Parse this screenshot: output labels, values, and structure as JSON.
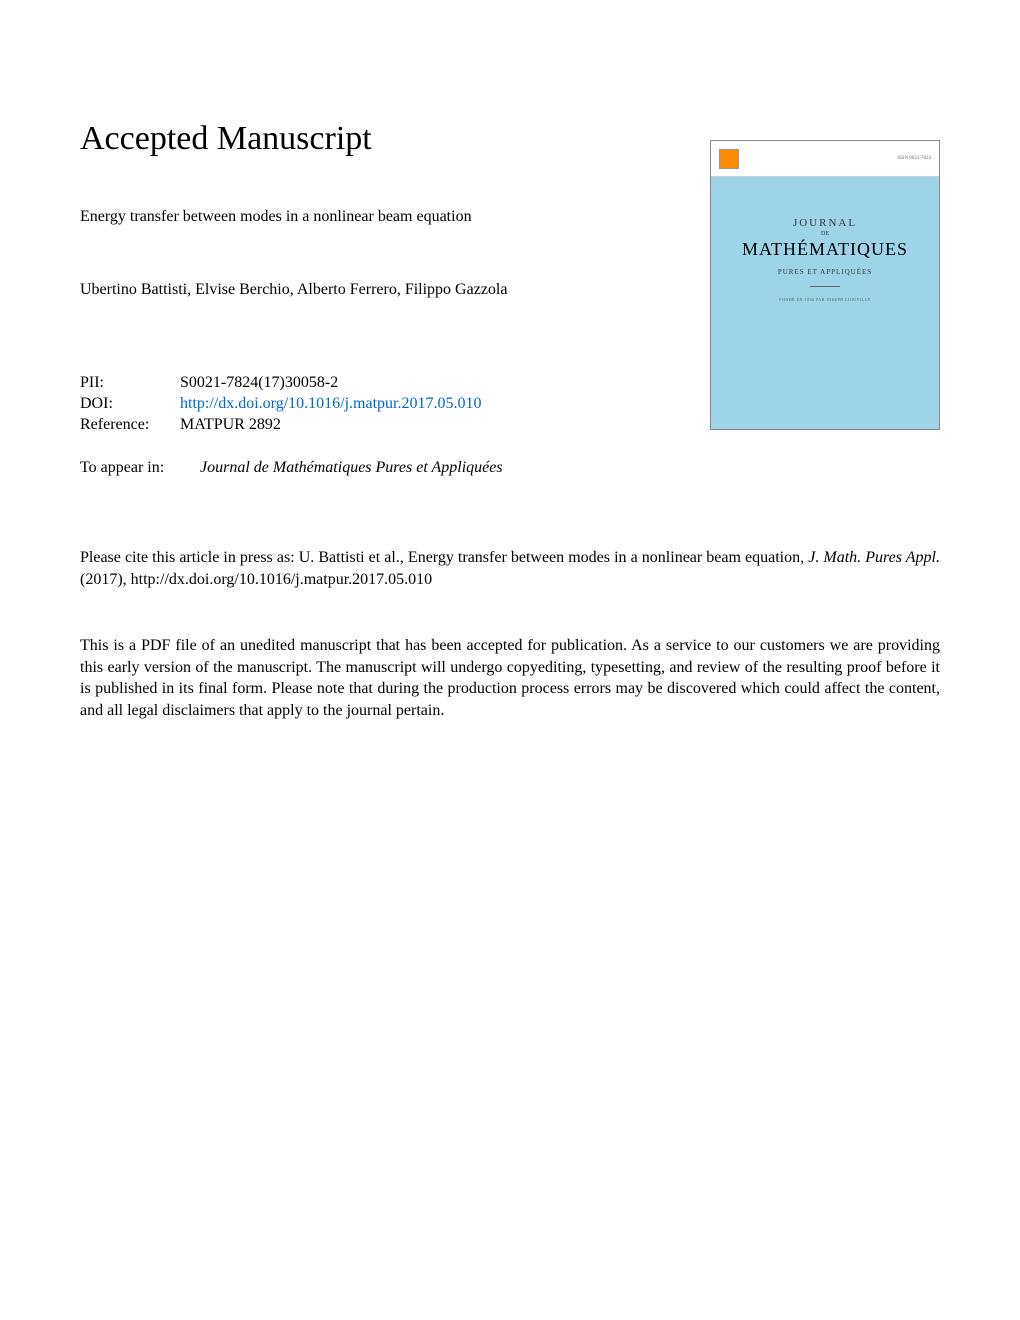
{
  "heading": "Accepted Manuscript",
  "article_title": "Energy transfer between modes in a nonlinear beam equation",
  "authors": "Ubertino Battisti, Elvise Berchio, Alberto Ferrero, Filippo Gazzola",
  "meta": {
    "pii_label": "PII:",
    "pii_value": "S0021-7824(17)30058-2",
    "doi_label": "DOI:",
    "doi_value": "http://dx.doi.org/10.1016/j.matpur.2017.05.010",
    "ref_label": "Reference:",
    "ref_value": "MATPUR 2892"
  },
  "appear": {
    "label": "To appear in:",
    "value": "Journal de Mathématiques Pures et Appliquées"
  },
  "citation": {
    "prefix": "Please cite this article in press as: U. Battisti et al., Energy transfer between modes in a nonlinear beam equation, ",
    "journal": "J. Math. Pures Appl.",
    "suffix": " (2017), http://dx.doi.org/10.1016/j.matpur.2017.05.010"
  },
  "disclaimer": "This is a PDF file of an unedited manuscript that has been accepted for publication. As a service to our customers we are providing this early version of the manuscript. The manuscript will undergo copyediting, typesetting, and review of the resulting proof before it is published in its final form. Please note that during the production process errors may be discovered which could affect the content, and all legal disclaimers that apply to the journal pertain.",
  "cover": {
    "issn": "ISSN 0021-7824",
    "journal_word": "JOURNAL",
    "de": "DE",
    "math": "MATHÉMATIQUES",
    "sub": "PURES ET APPLIQUÉES",
    "tiny": "FONDÉ EN 1836 PAR JOSEPH LIOUVILLE"
  },
  "colors": {
    "link": "#0066cc",
    "cover_bg": "#9dd4e8",
    "logo": "#ff8c00"
  }
}
